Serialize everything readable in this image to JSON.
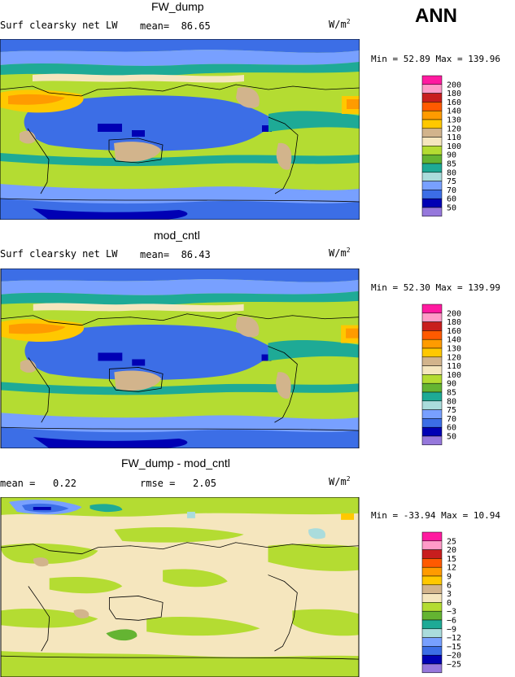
{
  "season": "ANN",
  "units_html_base": "W/m",
  "units_sup": "2",
  "chart_data": [
    {
      "type": "heatmap",
      "title": "FW_dump",
      "variable": "Surf clearsky net LW",
      "mean_label": "mean=",
      "mean": "86.65",
      "min_label": "Min =",
      "min": "52.89",
      "max_label": "Max =",
      "max": "139.96",
      "colorbar_levels": [
        "200",
        "180",
        "160",
        "140",
        "130",
        "120",
        "110",
        "100",
        "90",
        "85",
        "80",
        "75",
        "70",
        "60",
        "50"
      ],
      "colorbar_colors": [
        "#ff1aa0",
        "#ff9bc8",
        "#c81e1e",
        "#ff5a00",
        "#ff9b00",
        "#ffc800",
        "#d2b48c",
        "#f5e6be",
        "#b4dc32",
        "#64b432",
        "#1eaa96",
        "#aadcdc",
        "#78a0ff",
        "#3c6ee6",
        "#0000b4",
        "#9678dc"
      ]
    },
    {
      "type": "heatmap",
      "title": "mod_cntl",
      "variable": "Surf clearsky net LW",
      "mean_label": "mean=",
      "mean": "86.43",
      "min_label": "Min =",
      "min": "52.30",
      "max_label": "Max =",
      "max": "139.99",
      "colorbar_levels": [
        "200",
        "180",
        "160",
        "140",
        "130",
        "120",
        "110",
        "100",
        "90",
        "85",
        "80",
        "75",
        "70",
        "60",
        "50"
      ],
      "colorbar_colors": [
        "#ff1aa0",
        "#ff9bc8",
        "#c81e1e",
        "#ff5a00",
        "#ff9b00",
        "#ffc800",
        "#d2b48c",
        "#f5e6be",
        "#b4dc32",
        "#64b432",
        "#1eaa96",
        "#aadcdc",
        "#78a0ff",
        "#3c6ee6",
        "#0000b4",
        "#9678dc"
      ]
    },
    {
      "type": "heatmap",
      "title": "FW_dump - mod_cntl",
      "mean_label": "mean =",
      "mean": "0.22",
      "rmse_label": "rmse =",
      "rmse": "2.05",
      "min_label": "Min =",
      "min": "-33.94",
      "max_label": "Max =",
      "max": "10.94",
      "colorbar_levels": [
        "25",
        "20",
        "15",
        "12",
        "9",
        "6",
        "3",
        "0",
        "−3",
        "−6",
        "−9",
        "−12",
        "−15",
        "−20",
        "−25"
      ],
      "colorbar_colors": [
        "#ff1aa0",
        "#ff9bc8",
        "#c81e1e",
        "#ff5a00",
        "#ff9b00",
        "#ffc800",
        "#d2b48c",
        "#f5e6be",
        "#b4dc32",
        "#64b432",
        "#1eaa96",
        "#aadcdc",
        "#78a0ff",
        "#3c6ee6",
        "#0000b4",
        "#9678dc"
      ]
    }
  ]
}
